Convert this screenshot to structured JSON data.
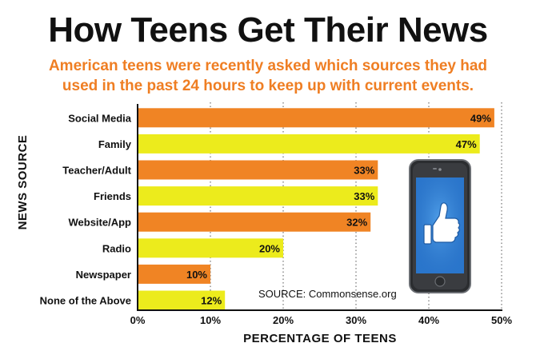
{
  "title": "How Teens Get Their News",
  "subtitle_line1": "American teens were recently asked which sources they had",
  "subtitle_line2": "used in the past 24 hours to keep up with current events.",
  "source_note": "SOURCE: Commonsense.org",
  "colors": {
    "orange": "#f08424",
    "yellow": "#eceb1c",
    "accent_text": "#ef7e23"
  },
  "chart_data": {
    "type": "bar",
    "orientation": "horizontal",
    "categories": [
      "Social Media",
      "Family",
      "Teacher/Adult",
      "Friends",
      "Website/App",
      "Radio",
      "Newspaper",
      "None of the Above"
    ],
    "values": [
      49,
      47,
      33,
      33,
      32,
      20,
      10,
      12
    ],
    "value_labels": [
      "49%",
      "47%",
      "33%",
      "33%",
      "32%",
      "20%",
      "10%",
      "12%"
    ],
    "bar_colors": [
      "orange",
      "yellow",
      "orange",
      "yellow",
      "orange",
      "yellow",
      "orange",
      "yellow"
    ],
    "xlabel": "PERCENTAGE OF TEENS",
    "ylabel": "NEWS SOURCE",
    "xlim": [
      0,
      50
    ],
    "xticks": [
      0,
      10,
      20,
      30,
      40,
      50
    ],
    "xtick_labels": [
      "0%",
      "10%",
      "20%",
      "30%",
      "40%",
      "50%"
    ],
    "grid": "vertical dotted"
  },
  "illustration": {
    "icon": "smartphone-thumbs-up-icon"
  }
}
